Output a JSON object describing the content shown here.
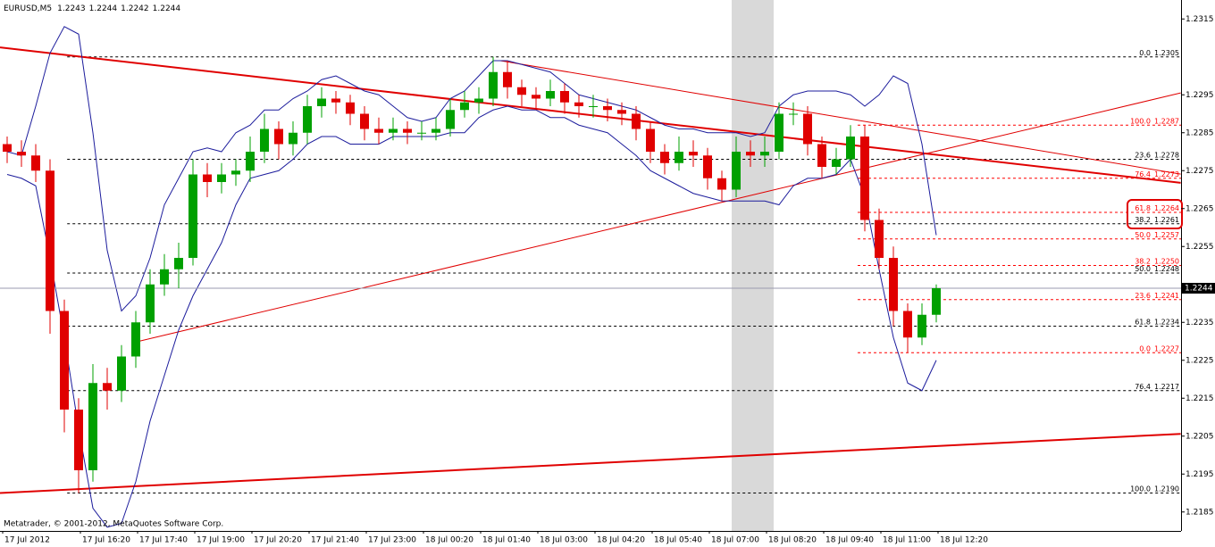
{
  "chart_data": {
    "type": "candlestick",
    "symbol": "EURUSD,M5",
    "header_prices": [
      1.2243,
      1.2244,
      1.2242,
      1.2244
    ],
    "footer": "Metatrader, © 2001-2012, MetaQuotes Software Corp.",
    "xlabels": [
      "17 Jul 2012",
      "17 Jul 16:20",
      "17 Jul 17:40",
      "17 Jul 19:00",
      "17 Jul 20:20",
      "17 Jul 21:40",
      "17 Jul 23:00",
      "18 Jul 00:20",
      "18 Jul 01:40",
      "18 Jul 03:00",
      "18 Jul 04:20",
      "18 Jul 05:40",
      "18 Jul 07:00",
      "18 Jul 08:20",
      "18 Jul 09:40",
      "18 Jul 11:00",
      "18 Jul 12:20"
    ],
    "ylim": [
      1.218,
      1.232
    ],
    "yticks": [
      1.2185,
      1.2195,
      1.2205,
      1.2215,
      1.2225,
      1.2235,
      1.2255,
      1.2265,
      1.2275,
      1.2285,
      1.2295,
      1.2315
    ],
    "last_price": 1.2244,
    "up_color": "#00a000",
    "down_color": "#e00000",
    "band_color": "#1c1c9c",
    "candles": [
      [
        1.2282,
        1.2284,
        1.2277,
        1.228
      ],
      [
        1.228,
        1.2283,
        1.2276,
        1.2279
      ],
      [
        1.2279,
        1.2282,
        1.2272,
        1.2275
      ],
      [
        1.2275,
        1.2278,
        1.2232,
        1.2238
      ],
      [
        1.2238,
        1.2241,
        1.2206,
        1.2212
      ],
      [
        1.2212,
        1.2215,
        1.219,
        1.2196
      ],
      [
        1.2196,
        1.2224,
        1.2193,
        1.2219
      ],
      [
        1.2219,
        1.2223,
        1.2212,
        1.2217
      ],
      [
        1.2217,
        1.2229,
        1.2214,
        1.2226
      ],
      [
        1.2226,
        1.2238,
        1.2223,
        1.2235
      ],
      [
        1.2235,
        1.2249,
        1.2232,
        1.2245
      ],
      [
        1.2245,
        1.2253,
        1.2242,
        1.2249
      ],
      [
        1.2249,
        1.2256,
        1.2244,
        1.2252
      ],
      [
        1.2252,
        1.2278,
        1.225,
        1.2274
      ],
      [
        1.2274,
        1.2277,
        1.2268,
        1.2272
      ],
      [
        1.2272,
        1.2277,
        1.2269,
        1.2274
      ],
      [
        1.2274,
        1.2278,
        1.2271,
        1.2275
      ],
      [
        1.2275,
        1.2284,
        1.2272,
        1.228
      ],
      [
        1.228,
        1.229,
        1.2277,
        1.2286
      ],
      [
        1.2286,
        1.2288,
        1.2278,
        1.2282
      ],
      [
        1.2282,
        1.2288,
        1.2279,
        1.2285
      ],
      [
        1.2285,
        1.2295,
        1.2282,
        1.2292
      ],
      [
        1.2292,
        1.2297,
        1.2289,
        1.2294
      ],
      [
        1.2294,
        1.2296,
        1.229,
        1.2293
      ],
      [
        1.2293,
        1.2295,
        1.2287,
        1.229
      ],
      [
        1.229,
        1.2292,
        1.2283,
        1.2286
      ],
      [
        1.2286,
        1.2289,
        1.2282,
        1.2285
      ],
      [
        1.2285,
        1.2289,
        1.2283,
        1.2286
      ],
      [
        1.2286,
        1.2288,
        1.2282,
        1.2285
      ],
      [
        1.2285,
        1.2288,
        1.2283,
        1.2285
      ],
      [
        1.2285,
        1.2289,
        1.2283,
        1.2286
      ],
      [
        1.2286,
        1.2294,
        1.2284,
        1.2291
      ],
      [
        1.2291,
        1.2296,
        1.2289,
        1.2293
      ],
      [
        1.2293,
        1.2297,
        1.229,
        1.2294
      ],
      [
        1.2294,
        1.2305,
        1.2292,
        1.2301
      ],
      [
        1.2301,
        1.2304,
        1.2294,
        1.2297
      ],
      [
        1.2297,
        1.2299,
        1.2292,
        1.2295
      ],
      [
        1.2295,
        1.2297,
        1.2291,
        1.2294
      ],
      [
        1.2294,
        1.2299,
        1.2292,
        1.2296
      ],
      [
        1.2296,
        1.2298,
        1.229,
        1.2293
      ],
      [
        1.2293,
        1.2295,
        1.2289,
        1.2292
      ],
      [
        1.2292,
        1.2295,
        1.2289,
        1.2292
      ],
      [
        1.2292,
        1.2294,
        1.2288,
        1.2291
      ],
      [
        1.2291,
        1.2293,
        1.2287,
        1.229
      ],
      [
        1.229,
        1.2292,
        1.2283,
        1.2286
      ],
      [
        1.2286,
        1.2288,
        1.2277,
        1.228
      ],
      [
        1.228,
        1.2282,
        1.2274,
        1.2277
      ],
      [
        1.2277,
        1.2284,
        1.2275,
        1.228
      ],
      [
        1.228,
        1.2283,
        1.2276,
        1.2279
      ],
      [
        1.2279,
        1.2281,
        1.227,
        1.2273
      ],
      [
        1.2273,
        1.2275,
        1.2267,
        1.227
      ],
      [
        1.227,
        1.2284,
        1.2268,
        1.228
      ],
      [
        1.228,
        1.2283,
        1.2276,
        1.2279
      ],
      [
        1.2279,
        1.2284,
        1.2276,
        1.228
      ],
      [
        1.228,
        1.2293,
        1.2278,
        1.229
      ],
      [
        1.229,
        1.2293,
        1.2287,
        1.229
      ],
      [
        1.229,
        1.2292,
        1.2279,
        1.2282
      ],
      [
        1.2282,
        1.2284,
        1.2273,
        1.2276
      ],
      [
        1.2276,
        1.2281,
        1.2274,
        1.2278
      ],
      [
        1.2278,
        1.2287,
        1.2276,
        1.2284
      ],
      [
        1.2284,
        1.2287,
        1.2259,
        1.2262
      ],
      [
        1.2262,
        1.2265,
        1.2249,
        1.2252
      ],
      [
        1.2252,
        1.2255,
        1.2234,
        1.2238
      ],
      [
        1.2238,
        1.224,
        1.2227,
        1.2231
      ],
      [
        1.2231,
        1.224,
        1.2229,
        1.2237
      ],
      [
        1.2237,
        1.2245,
        1.2235,
        1.2244
      ]
    ],
    "bands": [
      {
        "values": [
          1.228,
          1.2279,
          1.2292,
          1.2306,
          1.2313,
          1.2311,
          1.2285,
          1.2254,
          1.2238,
          1.2242,
          1.2252,
          1.2266,
          1.2273,
          1.228,
          1.2281,
          1.228,
          1.2285,
          1.2287,
          1.2291,
          1.2291,
          1.2294,
          1.2296,
          1.2299,
          1.23,
          1.2298,
          1.2296,
          1.2295,
          1.2292,
          1.2289,
          1.2288,
          1.2289,
          1.2294,
          1.2296,
          1.23,
          1.2304,
          1.2304,
          1.2303,
          1.2302,
          1.2301,
          1.2298,
          1.2295,
          1.2294,
          1.2293,
          1.2292,
          1.2291,
          1.2289,
          1.2287,
          1.2286,
          1.2286,
          1.2285,
          1.2285,
          1.2285,
          1.2284,
          1.2285,
          1.2292,
          1.2295,
          1.2296,
          1.2296,
          1.2296,
          1.2295,
          1.2292,
          1.2295,
          1.23,
          1.2298,
          1.2282,
          1.2258
        ]
      },
      {
        "values": [
          1.2274,
          1.2273,
          1.2271,
          1.2252,
          1.2231,
          1.2207,
          1.2186,
          1.2181,
          1.2182,
          1.2193,
          1.2209,
          1.2221,
          1.2233,
          1.2242,
          1.2249,
          1.2256,
          1.2266,
          1.2273,
          1.2274,
          1.2275,
          1.2278,
          1.2282,
          1.2284,
          1.2284,
          1.2282,
          1.2282,
          1.2282,
          1.2284,
          1.2284,
          1.2284,
          1.2284,
          1.2285,
          1.2285,
          1.2289,
          1.2291,
          1.2292,
          1.2291,
          1.2291,
          1.2289,
          1.2289,
          1.2287,
          1.2286,
          1.2285,
          1.2282,
          1.2279,
          1.2275,
          1.2273,
          1.2271,
          1.2269,
          1.2268,
          1.2267,
          1.2267,
          1.2267,
          1.2267,
          1.2266,
          1.2271,
          1.2273,
          1.2273,
          1.2274,
          1.2278,
          1.2268,
          1.2249,
          1.2231,
          1.2219,
          1.2217,
          1.2225
        ]
      }
    ],
    "trendlines": [
      {
        "x": [
          -0.5,
          82.1
        ],
        "y": [
          1.23075,
          1.22718
        ],
        "width": 2
      },
      {
        "x": [
          34.5,
          82.1
        ],
        "y": [
          1.2304,
          1.22741
        ],
        "width": 1
      },
      {
        "x": [
          9.2,
          82.1
        ],
        "y": [
          1.223,
          1.22955
        ],
        "width": 1
      },
      {
        "x": [
          -0.5,
          82.1
        ],
        "y": [
          1.219,
          1.22056
        ],
        "width": 2
      }
    ],
    "fibo": [
      {
        "color": "#000000",
        "start": 4.2,
        "levels": [
          {
            "level": "0.0",
            "price": 1.2305
          },
          {
            "level": "23.6",
            "price": 1.2278
          },
          {
            "level": "38.2",
            "price": 1.2261
          },
          {
            "level": "50.0",
            "price": 1.2248
          },
          {
            "level": "61.8",
            "price": 1.2234
          },
          {
            "level": "76.4",
            "price": 1.2217
          },
          {
            "level": "100.0",
            "price": {
              "value": 1.219,
              "label": "1.2190"
            }
          }
        ]
      },
      {
        "color": "#ff0000",
        "start": 59.5,
        "levels": [
          {
            "level": "100.0",
            "price": 1.2287
          },
          {
            "level": "76.4",
            "price": 1.2273
          },
          {
            "level": "61.8",
            "price": 1.2264
          },
          {
            "level": "50.0",
            "price": 1.2257
          },
          {
            "level": "38.2",
            "price": {
              "value": 1.225,
              "label": "1.2250"
            }
          },
          {
            "level": "23.6",
            "price": 1.2241
          },
          {
            "level": "0.0",
            "price": 1.2227
          }
        ]
      }
    ]
  }
}
